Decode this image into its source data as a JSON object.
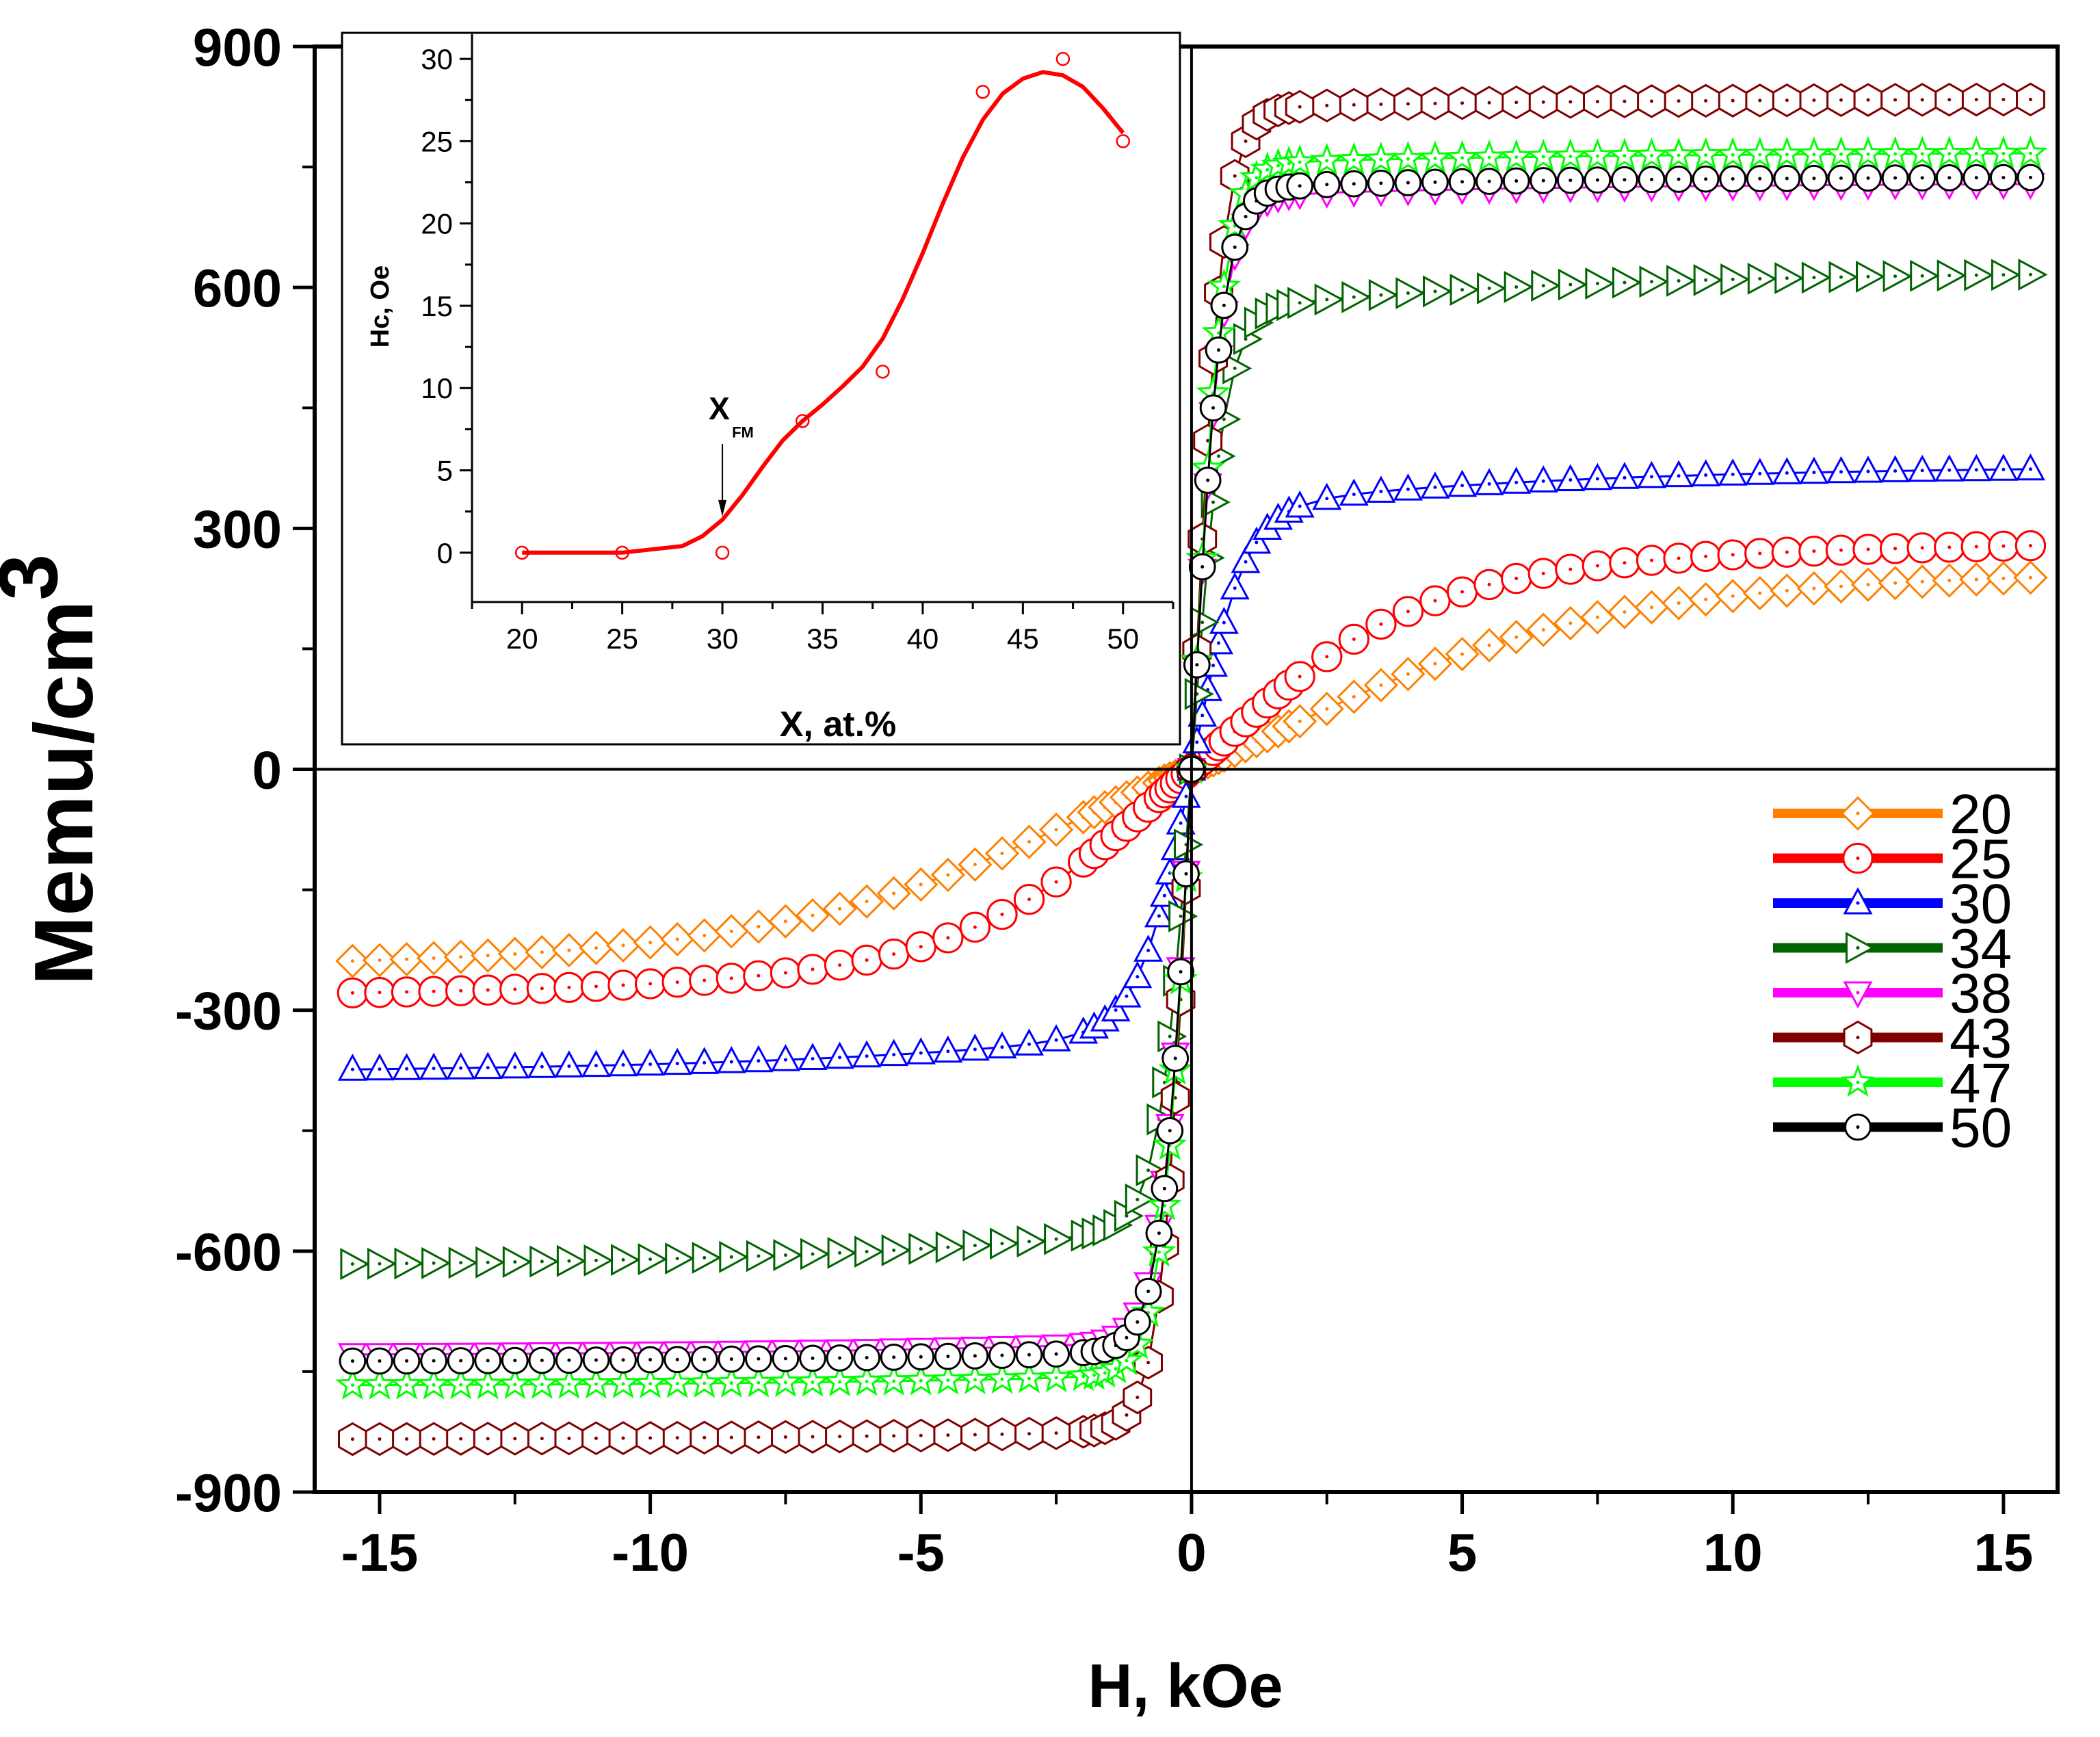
{
  "chart_data": {
    "type": "scatter",
    "main": {
      "xlabel": "H, kOe",
      "ylabel": "Memu/cm",
      "ylabel_sup": "3",
      "xlim": [
        -16.2,
        16.0
      ],
      "ylim": [
        -900,
        900
      ],
      "xticks": [
        -15,
        -10,
        -5,
        0,
        5,
        10,
        15
      ],
      "yticks": [
        -900,
        -600,
        -300,
        0,
        300,
        600,
        900
      ],
      "series": [
        {
          "name": "20",
          "color": "#ff8000",
          "marker": "diamond",
          "ms": 46,
          "Ms": 248,
          "H0": 6.0,
          "a": 0.35
        },
        {
          "name": "25",
          "color": "#ff0000",
          "marker": "circle",
          "ms": 46,
          "Ms": 285,
          "H0": 3.5,
          "a": 0.3
        },
        {
          "name": "30",
          "color": "#0000ff",
          "marker": "triangle-up",
          "ms": 40,
          "Ms": 378,
          "H0": 0.95,
          "a": 0.15
        },
        {
          "name": "34",
          "color": "#006400",
          "marker": "triangle-right",
          "ms": 44,
          "Ms": 620,
          "H0": 0.6,
          "a": 0.085
        },
        {
          "name": "38",
          "color": "#ff00ff",
          "marker": "triangle-down",
          "ms": 40,
          "Ms": 730,
          "H0": 0.55,
          "a": 0.025
        },
        {
          "name": "43",
          "color": "#800000",
          "marker": "hexagon",
          "ms": 46,
          "Ms": 835,
          "H0": 0.55,
          "a": 0.015
        },
        {
          "name": "47",
          "color": "#00ff00",
          "marker": "star",
          "ms": 44,
          "Ms": 768,
          "H0": 0.55,
          "a": 0.02
        },
        {
          "name": "50",
          "color": "#000000",
          "marker": "circle",
          "ms": 40,
          "Ms": 738,
          "H0": 0.55,
          "a": 0.02
        }
      ]
    },
    "inset": {
      "type": "scatter",
      "xlabel": "X, at.%",
      "ylabel": "Hc, Oe",
      "xlim": [
        17.5,
        52.5
      ],
      "ylim": [
        -3,
        31.5
      ],
      "xticks": [
        20,
        25,
        30,
        35,
        40,
        45,
        50
      ],
      "yticks": [
        0,
        5,
        10,
        15,
        20,
        25,
        30
      ],
      "x": [
        20,
        25,
        30,
        34,
        38,
        43,
        47,
        50
      ],
      "y": [
        0,
        0,
        0,
        8,
        11,
        28,
        30,
        25
      ],
      "fit_curve": {
        "x": [
          20,
          25,
          28,
          29,
          30,
          31,
          32,
          33,
          34,
          35,
          36,
          37,
          38,
          39,
          40,
          41,
          42,
          43,
          44,
          45,
          46,
          47,
          48,
          49,
          50
        ],
        "y": [
          0,
          0,
          0.4,
          1.0,
          2.0,
          3.5,
          5.2,
          6.8,
          8.0,
          9.0,
          10.1,
          11.3,
          13.0,
          15.4,
          18.2,
          21.2,
          24.0,
          26.3,
          27.9,
          28.8,
          29.2,
          29.0,
          28.3,
          27.0,
          25.5
        ],
        "color": "#ff0000"
      },
      "annotation": {
        "label": "X",
        "sub": "FM",
        "x": 30
      }
    }
  }
}
